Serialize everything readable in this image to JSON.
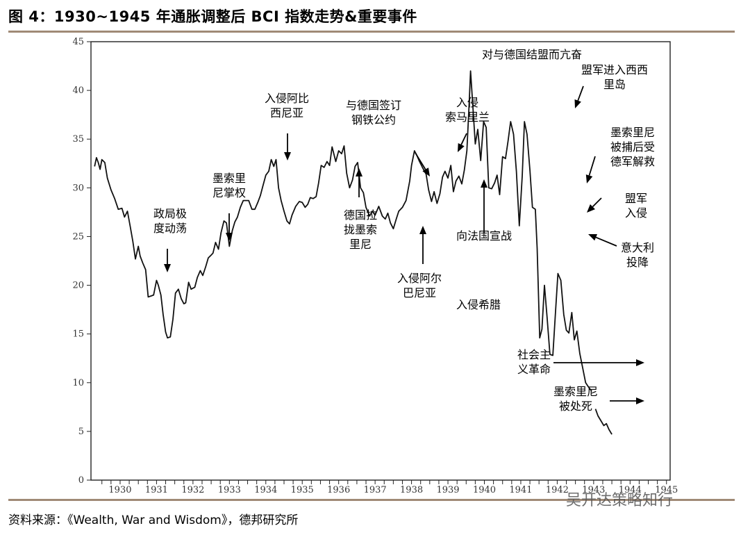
{
  "title": "图 4：1930~1945 年通胀调整后 BCI 指数走势&重要事件",
  "source": "资料来源：《Wealth, War and Wisdom》，德邦研究所",
  "watermark": "吴开达策略知行",
  "chart_data": {
    "type": "line",
    "title": "",
    "xlabel": "",
    "ylabel": "",
    "ylim": [
      0,
      45
    ],
    "xlim": [
      1929.7,
      1945.6
    ],
    "yticks": [
      0,
      5,
      10,
      15,
      20,
      25,
      30,
      35,
      40,
      45
    ],
    "xtick_labels": [
      "1930",
      "1931",
      "1932",
      "1933",
      "1934",
      "1935",
      "1936",
      "1937",
      "1938",
      "1939",
      "1940",
      "1941",
      "1942",
      "1943",
      "1944",
      "1945"
    ],
    "grid": false,
    "series": [
      {
        "name": "",
        "segments": [
          [
            [
              1929.8,
              32.2
            ],
            [
              1929.85,
              33.1
            ],
            [
              1929.9,
              32.6
            ],
            [
              1929.95,
              31.9
            ],
            [
              1930.0,
              32.9
            ],
            [
              1930.08,
              32.6
            ],
            [
              1930.15,
              31.0
            ],
            [
              1930.25,
              29.8
            ],
            [
              1930.35,
              28.9
            ],
            [
              1930.45,
              27.8
            ],
            [
              1930.55,
              27.9
            ],
            [
              1930.62,
              27.0
            ],
            [
              1930.7,
              27.6
            ],
            [
              1930.78,
              26.0
            ],
            [
              1930.85,
              24.5
            ],
            [
              1930.92,
              22.7
            ],
            [
              1931.0,
              24.0
            ],
            [
              1931.05,
              23.0
            ],
            [
              1931.12,
              22.3
            ],
            [
              1931.2,
              21.6
            ],
            [
              1931.27,
              18.8
            ],
            [
              1931.35,
              18.9
            ],
            [
              1931.42,
              19.0
            ],
            [
              1931.5,
              20.5
            ],
            [
              1931.55,
              20.0
            ],
            [
              1931.62,
              19.0
            ],
            [
              1931.68,
              17.0
            ],
            [
              1931.75,
              15.2
            ],
            [
              1931.8,
              14.6
            ],
            [
              1931.88,
              14.7
            ],
            [
              1931.95,
              16.5
            ],
            [
              1932.02,
              19.2
            ],
            [
              1932.1,
              19.6
            ],
            [
              1932.18,
              18.6
            ],
            [
              1932.25,
              18.1
            ],
            [
              1932.3,
              18.2
            ],
            [
              1932.38,
              20.3
            ],
            [
              1932.45,
              19.6
            ],
            [
              1932.55,
              19.8
            ],
            [
              1932.62,
              20.8
            ],
            [
              1932.7,
              21.5
            ],
            [
              1932.77,
              21.0
            ],
            [
              1932.85,
              21.9
            ],
            [
              1932.92,
              22.8
            ],
            [
              1933.0,
              23.1
            ],
            [
              1933.05,
              23.3
            ],
            [
              1933.12,
              24.4
            ],
            [
              1933.2,
              23.7
            ],
            [
              1933.27,
              25.4
            ],
            [
              1933.35,
              26.6
            ],
            [
              1933.42,
              26.4
            ],
            [
              1933.5,
              24.0
            ],
            [
              1933.58,
              25.6
            ],
            [
              1933.65,
              26.5
            ],
            [
              1933.72,
              27.0
            ],
            [
              1933.8,
              28.0
            ],
            [
              1933.88,
              28.7
            ],
            [
              1933.95,
              28.7
            ],
            [
              1934.03,
              28.7
            ],
            [
              1934.12,
              27.8
            ],
            [
              1934.2,
              27.8
            ],
            [
              1934.28,
              28.5
            ],
            [
              1934.35,
              29.2
            ],
            [
              1934.42,
              30.2
            ],
            [
              1934.5,
              31.3
            ],
            [
              1934.58,
              31.7
            ],
            [
              1934.65,
              32.9
            ],
            [
              1934.72,
              32.2
            ],
            [
              1934.78,
              32.9
            ],
            [
              1934.85,
              30.0
            ],
            [
              1934.92,
              28.7
            ],
            [
              1935.0,
              27.6
            ],
            [
              1935.08,
              26.6
            ],
            [
              1935.15,
              26.3
            ],
            [
              1935.22,
              27.2
            ],
            [
              1935.32,
              28.1
            ],
            [
              1935.42,
              28.6
            ],
            [
              1935.5,
              28.5
            ],
            [
              1935.58,
              28.0
            ],
            [
              1935.65,
              28.3
            ],
            [
              1935.72,
              29.0
            ],
            [
              1935.8,
              28.9
            ],
            [
              1935.88,
              29.1
            ],
            [
              1935.95,
              30.5
            ],
            [
              1936.02,
              32.3
            ],
            [
              1936.1,
              32.1
            ],
            [
              1936.18,
              32.7
            ],
            [
              1936.25,
              32.3
            ],
            [
              1936.32,
              34.2
            ],
            [
              1936.42,
              32.7
            ],
            [
              1936.5,
              33.8
            ],
            [
              1936.58,
              33.5
            ],
            [
              1936.65,
              34.3
            ],
            [
              1936.72,
              31.5
            ],
            [
              1936.8,
              30.0
            ],
            [
              1936.88,
              30.8
            ],
            [
              1936.95,
              32.2
            ],
            [
              1937.02,
              32.6
            ],
            [
              1937.1,
              30.0
            ],
            [
              1937.18,
              29.5
            ],
            [
              1937.25,
              28.0
            ],
            [
              1937.35,
              27.1
            ],
            [
              1937.42,
              27.6
            ],
            [
              1937.5,
              27.2
            ],
            [
              1937.6,
              28.1
            ],
            [
              1937.7,
              27.1
            ],
            [
              1937.78,
              26.8
            ],
            [
              1937.85,
              27.4
            ],
            [
              1937.92,
              26.4
            ],
            [
              1938.0,
              25.8
            ],
            [
              1938.08,
              26.8
            ],
            [
              1938.15,
              27.6
            ],
            [
              1938.25,
              28.0
            ],
            [
              1938.35,
              28.7
            ],
            [
              1938.45,
              30.7
            ],
            [
              1938.5,
              32.3
            ],
            [
              1938.58,
              33.8
            ],
            [
              1938.65,
              33.3
            ],
            [
              1938.72,
              32.7
            ],
            [
              1938.8,
              32.1
            ],
            [
              1938.9,
              31.4
            ],
            [
              1938.97,
              29.8
            ],
            [
              1939.05,
              28.6
            ],
            [
              1939.12,
              29.6
            ],
            [
              1939.2,
              28.4
            ],
            [
              1939.28,
              29.4
            ],
            [
              1939.35,
              31.1
            ],
            [
              1939.42,
              31.7
            ],
            [
              1939.5,
              31.0
            ],
            [
              1939.58,
              32.3
            ],
            [
              1939.65,
              29.6
            ],
            [
              1939.72,
              30.7
            ],
            [
              1939.8,
              31.2
            ],
            [
              1939.88,
              30.4
            ],
            [
              1939.95,
              31.8
            ],
            [
              1940.02,
              33.8
            ],
            [
              1940.08,
              38.5
            ],
            [
              1940.12,
              42.0
            ],
            [
              1940.18,
              38.6
            ],
            [
              1940.25,
              34.5
            ],
            [
              1940.32,
              36.0
            ],
            [
              1940.4,
              32.8
            ],
            [
              1940.48,
              36.8
            ],
            [
              1940.55,
              36.2
            ],
            [
              1940.62,
              30.0
            ],
            [
              1940.7,
              29.9
            ],
            [
              1940.78,
              30.5
            ],
            [
              1940.85,
              31.3
            ],
            [
              1940.92,
              29.3
            ],
            [
              1941.0,
              33.2
            ],
            [
              1941.08,
              33.0
            ],
            [
              1941.15,
              34.8
            ],
            [
              1941.22,
              36.8
            ],
            [
              1941.3,
              35.5
            ],
            [
              1941.38,
              31.7
            ],
            [
              1941.46,
              26.1
            ],
            [
              1941.54,
              31.2
            ],
            [
              1941.6,
              36.8
            ],
            [
              1941.67,
              35.5
            ],
            [
              1941.75,
              31.8
            ],
            [
              1941.82,
              28.0
            ],
            [
              1941.9,
              27.8
            ],
            [
              1941.95,
              23.8
            ],
            [
              1942.02,
              14.6
            ],
            [
              1942.08,
              15.5
            ],
            [
              1942.15,
              20.0
            ],
            [
              1942.22,
              16.8
            ],
            [
              1942.3,
              12.9
            ],
            [
              1942.38,
              12.8
            ],
            [
              1942.45,
              17.1
            ],
            [
              1942.52,
              21.2
            ],
            [
              1942.6,
              20.5
            ],
            [
              1942.68,
              17.0
            ],
            [
              1942.75,
              15.4
            ],
            [
              1942.82,
              15.1
            ],
            [
              1942.9,
              17.2
            ],
            [
              1942.97,
              14.4
            ],
            [
              1943.04,
              15.3
            ],
            [
              1943.12,
              13.0
            ],
            [
              1943.2,
              11.5
            ],
            [
              1943.28,
              10.0
            ],
            [
              1943.35,
              9.6
            ],
            [
              1943.45,
              9.1
            ]
          ],
          [
            [
              1943.55,
              7.3
            ],
            [
              1943.62,
              6.6
            ],
            [
              1943.7,
              6.1
            ],
            [
              1943.78,
              5.6
            ],
            [
              1943.85,
              5.8
            ],
            [
              1943.92,
              5.2
            ],
            [
              1944.0,
              4.7
            ]
          ]
        ]
      }
    ],
    "annotations": [
      {
        "text": [
          "政局极",
          "度动荡"
        ]
      },
      {
        "text": [
          "墨索里",
          "尼掌权"
        ]
      },
      {
        "text": [
          "入侵阿比",
          "西尼亚"
        ]
      },
      {
        "text": [
          "与德国签订",
          "钢铁公约"
        ]
      },
      {
        "text": [
          "德国拉",
          "拢墨索",
          "里尼"
        ]
      },
      {
        "text": [
          "入侵阿尔",
          "巴尼亚"
        ]
      },
      {
        "text": [
          "入侵希腊"
        ]
      },
      {
        "text": [
          "入侵",
          "索马里兰"
        ]
      },
      {
        "text": [
          "向法国宣战"
        ]
      },
      {
        "text": [
          "对与德国结盟而亢奋"
        ]
      },
      {
        "text": [
          "盟军进入西西",
          "里岛"
        ]
      },
      {
        "text": [
          "墨索里尼",
          "被捕后受",
          "德军解救"
        ]
      },
      {
        "text": [
          "盟军",
          "入侵"
        ]
      },
      {
        "text": [
          "意大利",
          "投降"
        ]
      },
      {
        "text": [
          "社会主",
          "义革命"
        ]
      },
      {
        "text": [
          "墨索里尼",
          "被处死"
        ]
      }
    ]
  }
}
